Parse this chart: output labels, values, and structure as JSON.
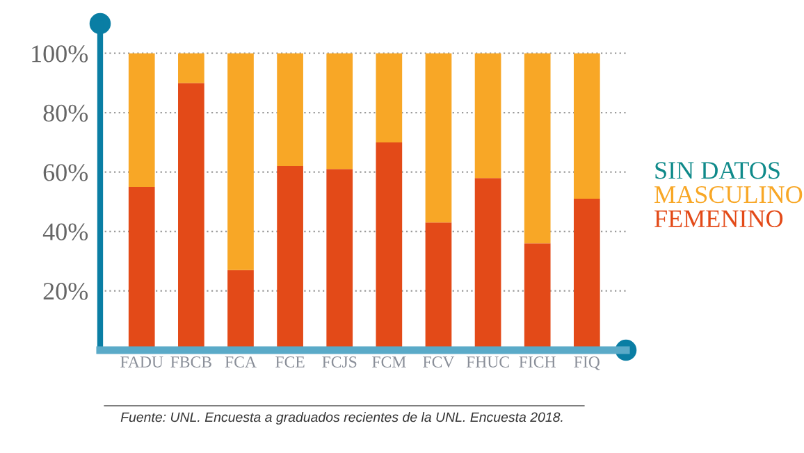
{
  "chart_data": {
    "type": "bar",
    "stacked": true,
    "categories": [
      "FADU",
      "FBCB",
      "FCA",
      "FCE",
      "FCJS",
      "FCM",
      "FCV",
      "FHUC",
      "FICH",
      "FIQ"
    ],
    "series": [
      {
        "name": "FEMENINO",
        "color": "#e34a18",
        "values": [
          55,
          90,
          27,
          62,
          61,
          70,
          43,
          58,
          36,
          51
        ]
      },
      {
        "name": "MASCULINO",
        "color": "#f8a726",
        "values": [
          45,
          10,
          73,
          38,
          39,
          30,
          57,
          42,
          64,
          49
        ]
      },
      {
        "name": "SIN DATOS",
        "color": "#0f8a8a",
        "values": [
          0,
          0,
          0,
          0,
          0,
          0,
          0,
          0,
          0,
          0
        ]
      }
    ],
    "ylim": [
      0,
      110
    ],
    "yticks": [
      {
        "value": 20,
        "label": "20%"
      },
      {
        "value": 40,
        "label": "40%"
      },
      {
        "value": 60,
        "label": "60%"
      },
      {
        "value": 80,
        "label": "80%"
      },
      {
        "value": 100,
        "label": "100%"
      }
    ],
    "grid": "y",
    "legend": "right",
    "annotations": [
      "Fuente: UNL. Encuesta a graduados recientes de la UNL. Encuesta 2018."
    ]
  }
}
